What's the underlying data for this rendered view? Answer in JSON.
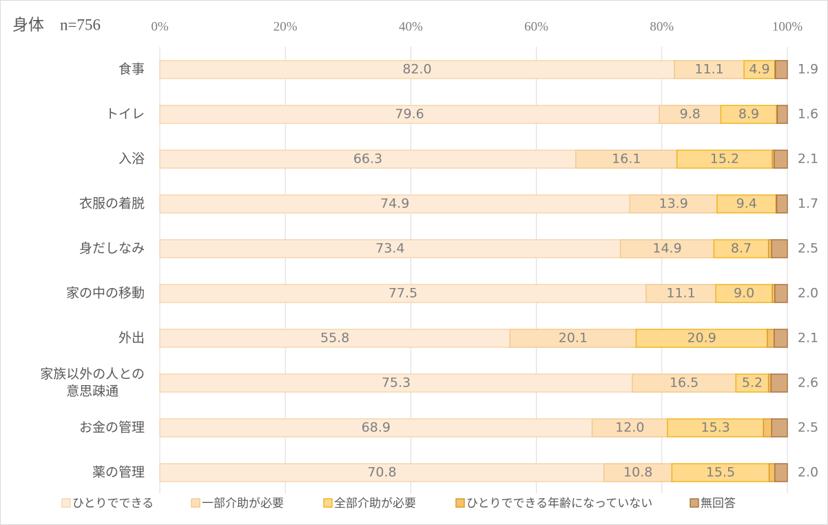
{
  "chart_data": {
    "type": "stacked-bar-horizontal",
    "title": "身体　n=756",
    "categories": [
      "食事",
      "トイレ",
      "入浴",
      "衣服の着脱",
      "身だしなみ",
      "家の中の移動",
      "外出",
      "家族以外の人との\n意思疎通",
      "お金の管理",
      "薬の管理"
    ],
    "xlim": [
      0,
      100
    ],
    "xticks": [
      {
        "value": 0,
        "label": "0%"
      },
      {
        "value": 20,
        "label": "20%"
      },
      {
        "value": 40,
        "label": "40%"
      },
      {
        "value": 60,
        "label": "60%"
      },
      {
        "value": 80,
        "label": "80%"
      },
      {
        "value": 100,
        "label": "100%"
      }
    ],
    "grid": true,
    "legend": "bottom",
    "series": [
      {
        "name": "ひとりでできる",
        "color": "#fdebd7",
        "values": [
          82.0,
          79.6,
          66.3,
          74.9,
          73.4,
          77.5,
          55.8,
          75.3,
          68.9,
          70.8
        ],
        "value_labels": [
          "82.0",
          "79.6",
          "66.3",
          "74.9",
          "73.4",
          "77.5",
          "55.8",
          "75.3",
          "68.9",
          "70.8"
        ]
      },
      {
        "name": "一部介助が必要",
        "color": "#fde0b8",
        "values": [
          11.1,
          9.8,
          16.1,
          13.9,
          14.9,
          11.1,
          20.1,
          16.5,
          12.0,
          10.8
        ],
        "value_labels": [
          "11.1",
          "9.8",
          "16.1",
          "13.9",
          "14.9",
          "11.1",
          "20.1",
          "16.5",
          "12.0",
          "10.8"
        ]
      },
      {
        "name": "全部介助が必要",
        "color": "#ffd98c",
        "values": [
          4.9,
          8.9,
          15.2,
          9.4,
          8.7,
          9.0,
          20.9,
          5.2,
          15.3,
          15.5
        ],
        "value_labels": [
          "4.9",
          "8.9",
          "15.2",
          "9.4",
          "8.7",
          "9.0",
          "20.9",
          "5.2",
          "15.3",
          "15.5"
        ]
      },
      {
        "name": "ひとりでできる年齢になっていない",
        "color": "#f5c26a",
        "values": [
          0.1,
          0.1,
          0.3,
          0.1,
          0.5,
          0.4,
          1.1,
          0.4,
          1.3,
          0.9
        ]
      },
      {
        "name": "無回答",
        "color": "#d6a97c",
        "values": [
          1.9,
          1.6,
          2.1,
          1.7,
          2.5,
          2.0,
          2.1,
          2.6,
          2.5,
          2.0
        ],
        "value_labels": [
          "1.9",
          "1.6",
          "2.1",
          "1.7",
          "2.5",
          "2.0",
          "2.1",
          "2.6",
          "2.5",
          "2.0"
        ]
      }
    ]
  }
}
